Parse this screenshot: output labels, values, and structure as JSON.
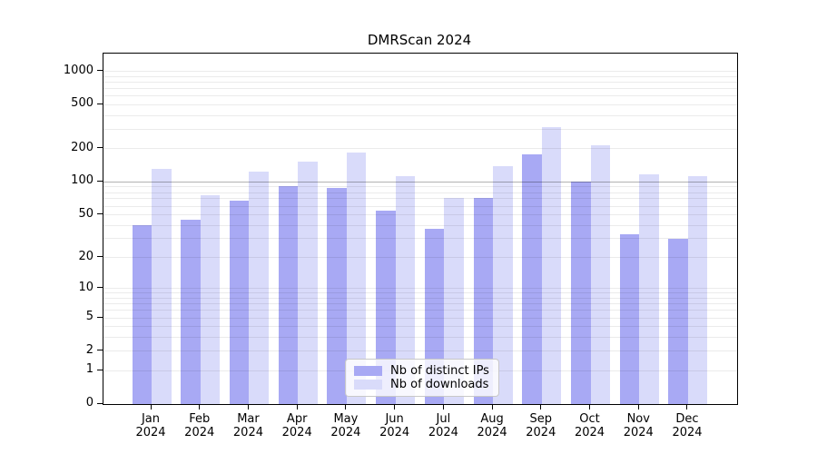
{
  "figure": {
    "background": "#ffffff"
  },
  "chart_data": {
    "type": "bar",
    "title": "DMRScan 2024",
    "y_scale": "log1p",
    "grid": "on",
    "legend_position": "lower-center",
    "categories": [
      "Jan",
      "Feb",
      "Mar",
      "Apr",
      "May",
      "Jun",
      "Jul",
      "Aug",
      "Sep",
      "Oct",
      "Nov",
      "Dec"
    ],
    "x_tick_sublabel": "2024",
    "y_ticks": [
      0,
      1,
      2,
      5,
      10,
      20,
      50,
      100,
      200,
      500,
      1000
    ],
    "ylim": [
      0,
      1450
    ],
    "series": [
      {
        "name": "Nb of distinct IPs",
        "color": "#a8a9f4",
        "values": [
          40,
          45,
          68,
          91,
          88,
          55,
          37,
          71,
          178,
          101,
          33,
          30
        ]
      },
      {
        "name": "Nb of downloads",
        "color": "#d9dbfa",
        "values": [
          132,
          76,
          124,
          154,
          186,
          113,
          72,
          140,
          315,
          216,
          117,
          113
        ]
      }
    ],
    "colors": {
      "grid_minor": "rgba(0,0,0,0.08)",
      "grid_major": "rgba(0,0,0,0.30)",
      "axis": "#000000"
    },
    "grid_major_at": 100
  }
}
